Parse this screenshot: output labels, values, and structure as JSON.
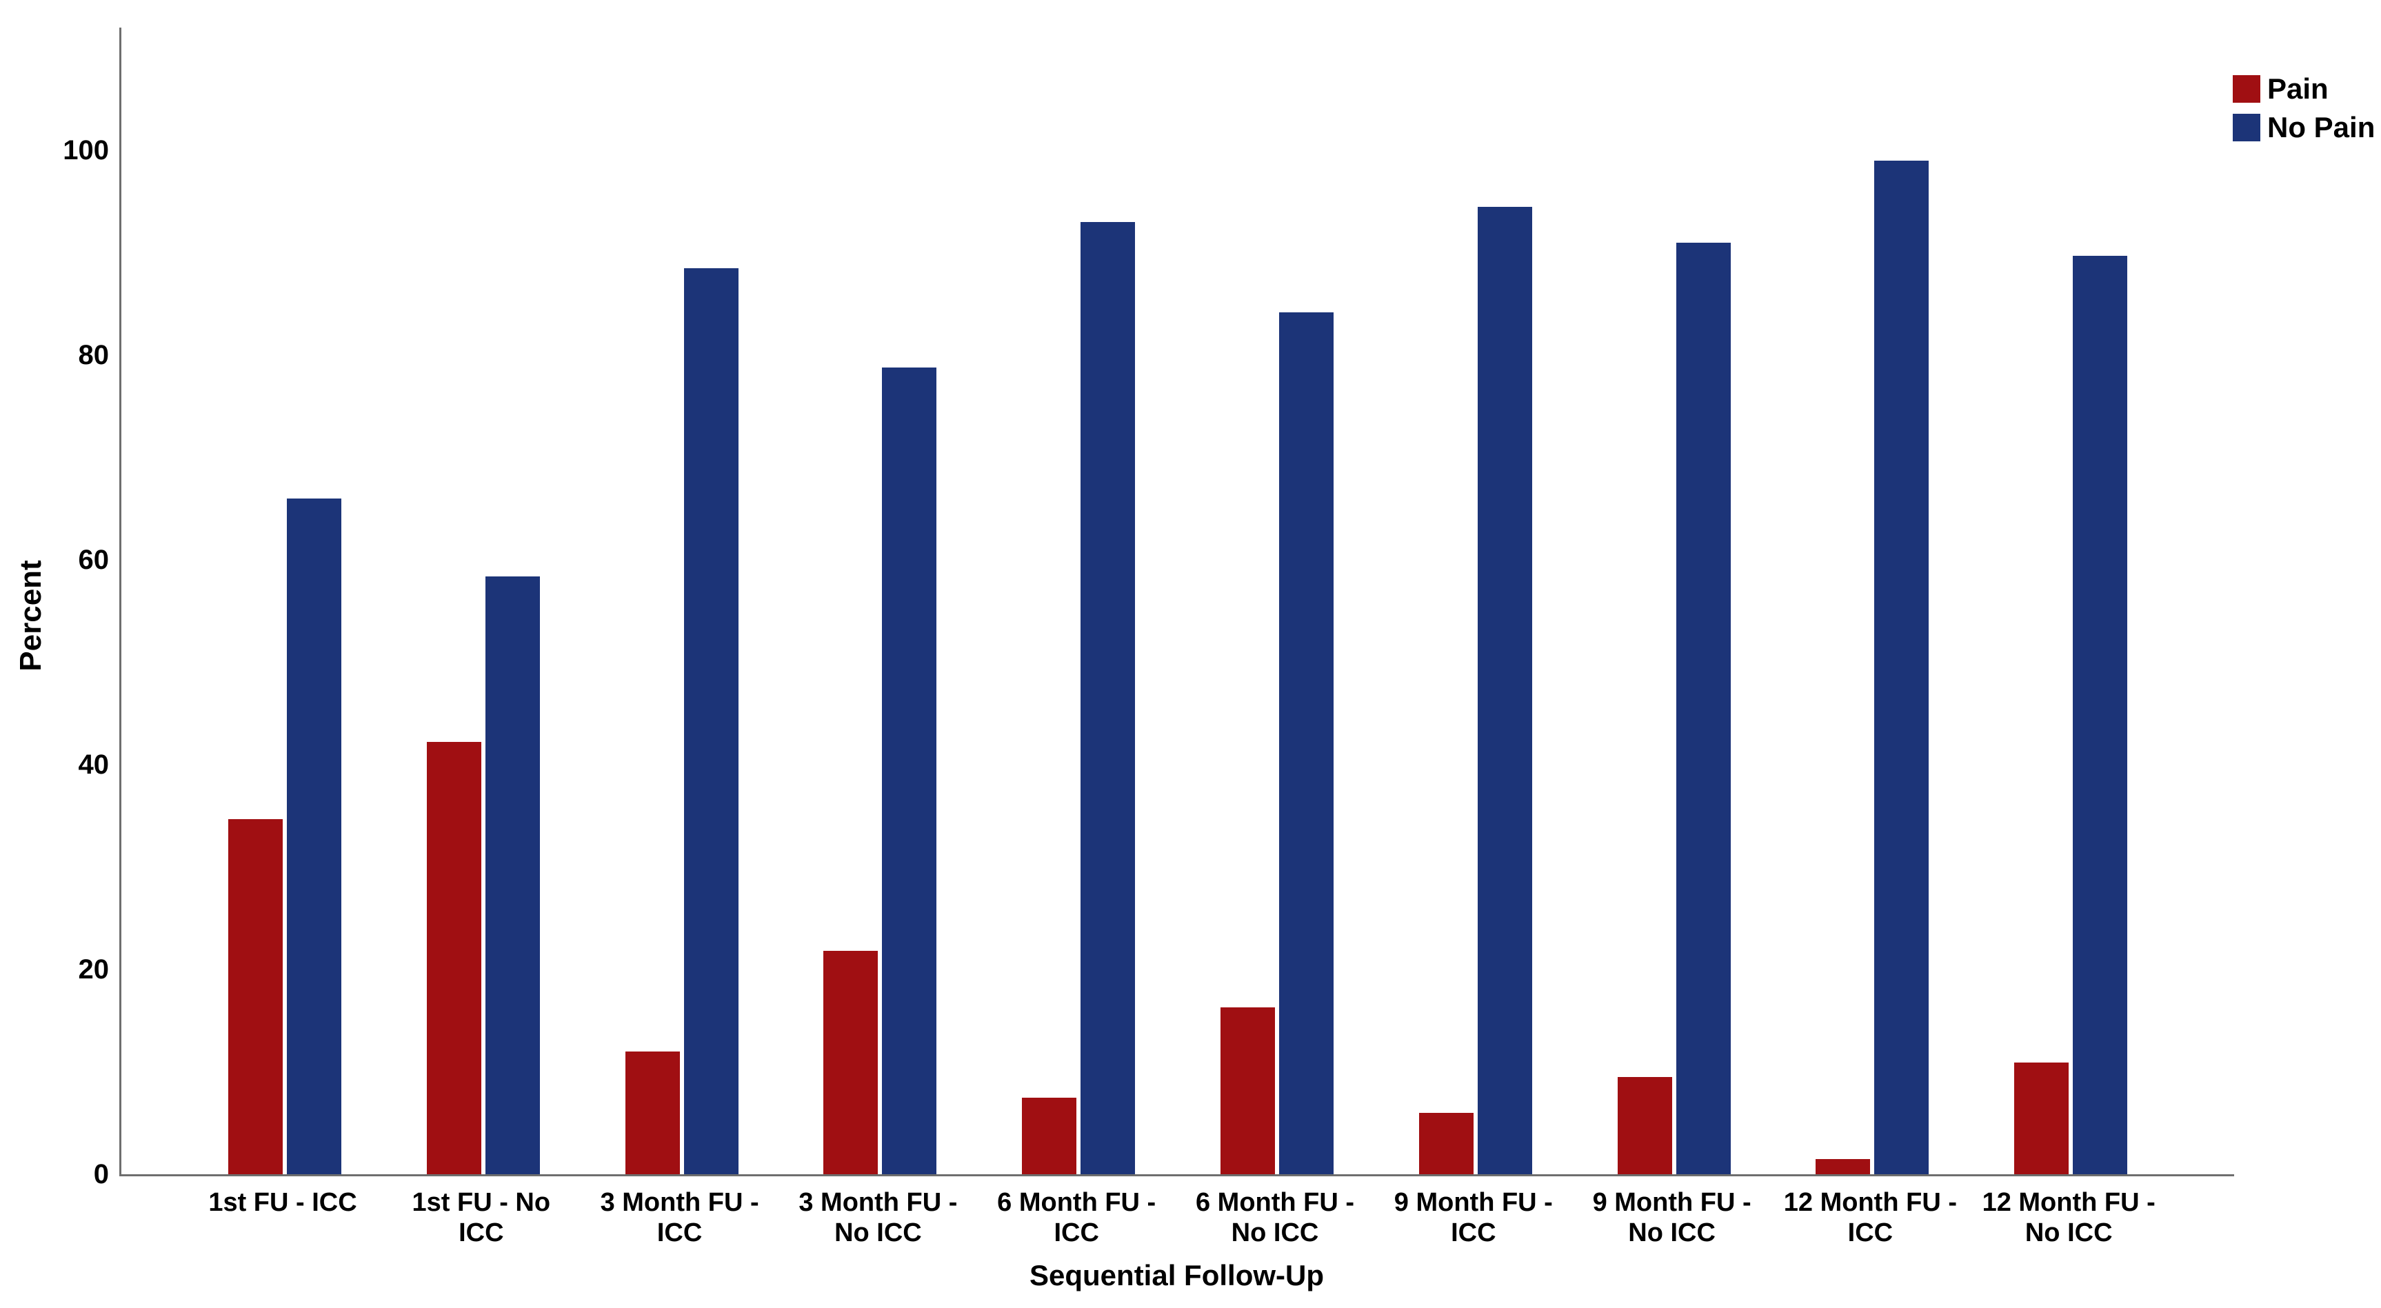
{
  "chart_data": {
    "type": "bar",
    "title": "",
    "xlabel": "Sequential Follow-Up",
    "ylabel": "Percent",
    "ylim": [
      0,
      112
    ],
    "yticks": [
      0,
      20,
      40,
      60,
      80,
      100
    ],
    "grid": false,
    "legend_position": "top-right",
    "categories": [
      [
        "1st FU - ICC"
      ],
      [
        "1st FU - No",
        "ICC"
      ],
      [
        "3 Month FU -",
        "ICC"
      ],
      [
        "3 Month FU -",
        "No ICC"
      ],
      [
        "6 Month FU -",
        "ICC"
      ],
      [
        "6 Month FU -",
        "No ICC"
      ],
      [
        "9 Month FU -",
        "ICC"
      ],
      [
        "9 Month FU -",
        "No ICC"
      ],
      [
        "12 Month FU -",
        "ICC"
      ],
      [
        "12 Month FU -",
        "No ICC"
      ]
    ],
    "series": [
      {
        "name": "Pain",
        "color": "#A00F12",
        "values": [
          34.7,
          42.2,
          12.0,
          21.8,
          7.5,
          16.3,
          6.0,
          9.5,
          1.5,
          10.9
        ]
      },
      {
        "name": "No Pain",
        "color": "#1C3478",
        "values": [
          66.0,
          58.4,
          88.5,
          78.8,
          93.0,
          84.2,
          94.5,
          91.0,
          99.0,
          89.7
        ]
      }
    ]
  },
  "axis_color": "#6e6e6e",
  "text_color": "#000000"
}
